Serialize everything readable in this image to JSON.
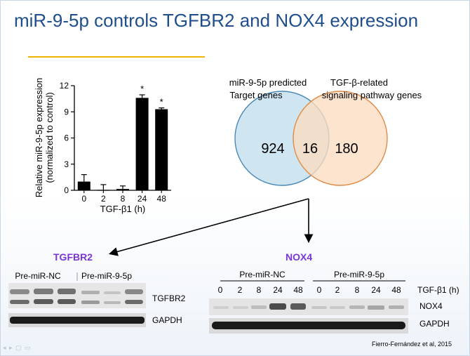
{
  "slide": {
    "title": "miR-9-5p controls TGFBR2 and NOX4 expression",
    "credit": "Fierro-Fernández et al, 2015"
  },
  "chart_data": [
    {
      "type": "bar",
      "ylabel": "Relative miR-9-5p expression (normalized to control)",
      "ylabel_lines": [
        "Relative miR-9-5p expression",
        "(normalized to control)"
      ],
      "xlabel": "TGF-β1 (h)",
      "categories": [
        "0",
        "2",
        "8",
        "24",
        "48"
      ],
      "values": [
        1.0,
        0.05,
        0.15,
        10.6,
        9.3
      ],
      "errors": [
        0.8,
        0.6,
        0.35,
        0.35,
        0.15
      ],
      "significant": [
        "",
        "",
        "",
        "*",
        "*"
      ],
      "yticks": [
        "0",
        "3",
        "6",
        "9",
        "12"
      ],
      "ylim": [
        0,
        12
      ],
      "bar_color": "#000000"
    },
    {
      "type": "venn",
      "sets": [
        {
          "label_lines": [
            "miR-9-5p predicted",
            "Target genes"
          ],
          "only_count": "924",
          "color": "#cfe6f2"
        },
        {
          "label_lines": [
            "TGF-β-related",
            "signaling pathway genes"
          ],
          "only_count": "180",
          "color": "#fbdcc0"
        }
      ],
      "intersection": "16"
    }
  ],
  "blots": {
    "tgfbr2": {
      "title": "TGFBR2",
      "title_color": "#7a35d6",
      "groups": [
        "Pre-miR-NC",
        "Pre-miR-9-5p"
      ],
      "rows": [
        "TGFBR2",
        "GAPDH"
      ]
    },
    "nox4": {
      "title": "NOX4",
      "title_color": "#7a35d6",
      "groups": [
        "Pre-miR-NC",
        "Pre-miR-9-5p"
      ],
      "lanes": [
        "0",
        "2",
        "8",
        "24",
        "48",
        "0",
        "2",
        "8",
        "24",
        "48"
      ],
      "lane_header": "TGF-β1 (h)",
      "rows": [
        "NOX4",
        "GAPDH"
      ]
    }
  }
}
